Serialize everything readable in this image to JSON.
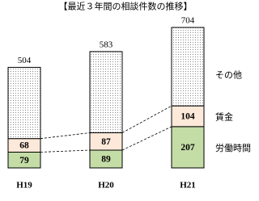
{
  "chart_data": {
    "type": "stacked-bar",
    "title": "【最近３年間の相談件数の推移】",
    "categories": [
      "H19",
      "H20",
      "H21"
    ],
    "series": [
      {
        "name": "労働時間",
        "color": "#c4dca6",
        "values": [
          79,
          89,
          207
        ]
      },
      {
        "name": "賃金",
        "color": "#fde9d9",
        "values": [
          68,
          87,
          104
        ]
      },
      {
        "name": "その他",
        "color": "dotted",
        "values": [
          357,
          407,
          393
        ]
      }
    ],
    "totals": [
      504,
      583,
      704
    ]
  }
}
